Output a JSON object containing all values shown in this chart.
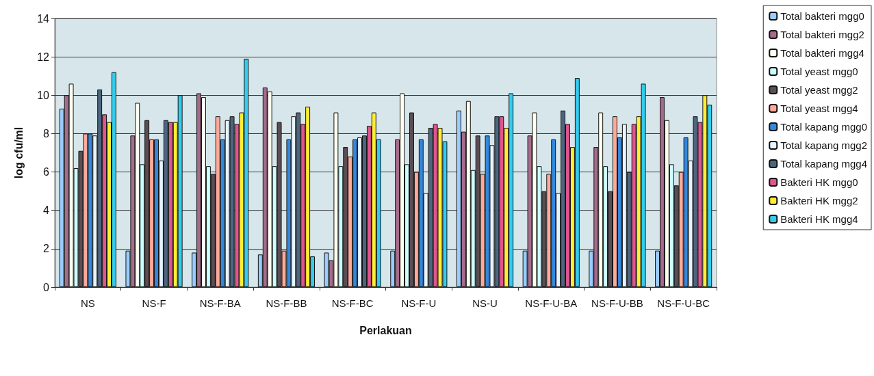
{
  "chart_data": {
    "type": "bar",
    "xlabel": "Perlakuan",
    "ylabel": "log cfu/ml",
    "categories": [
      "NS",
      "NS-F",
      "NS-F-BA",
      "NS-F-BB",
      "NS-F-BC",
      "NS-F-U",
      "NS-U",
      "NS-F-U-BA",
      "NS-F-U-BB",
      "NS-F-U-BC"
    ],
    "series": [
      {
        "name": "Total bakteri mgg0",
        "color": "#99ccff",
        "values": [
          9.3,
          1.9,
          1.8,
          1.7,
          1.8,
          1.9,
          9.2,
          1.9,
          1.9,
          1.9
        ]
      },
      {
        "name": "Total bakteri mgg2",
        "color": "#a66c8c",
        "values": [
          10.0,
          7.9,
          10.1,
          10.4,
          1.4,
          7.7,
          8.1,
          7.9,
          7.3,
          9.9
        ]
      },
      {
        "name": "Total bakteri mgg4",
        "color": "#fffff0",
        "values": [
          10.6,
          9.6,
          9.9,
          10.2,
          9.1,
          10.1,
          9.7,
          9.1,
          9.1,
          8.7
        ]
      },
      {
        "name": "Total yeast mgg0",
        "color": "#ccffff",
        "values": [
          6.2,
          6.4,
          6.3,
          6.3,
          6.3,
          6.4,
          6.1,
          6.3,
          6.3,
          6.4
        ]
      },
      {
        "name": "Total yeast mgg2",
        "color": "#5c4d55",
        "values": [
          7.1,
          8.7,
          5.9,
          8.6,
          7.3,
          9.1,
          7.9,
          5.0,
          5.0,
          5.3
        ]
      },
      {
        "name": "Total yeast mgg4",
        "color": "#ffaa99",
        "values": [
          8.0,
          7.7,
          8.9,
          1.9,
          6.8,
          6.0,
          5.9,
          5.9,
          8.9,
          6.0
        ]
      },
      {
        "name": "Total kapang mgg0",
        "color": "#3388dd",
        "values": [
          8.0,
          7.7,
          7.7,
          7.7,
          7.7,
          7.7,
          7.9,
          7.7,
          7.8,
          7.8
        ]
      },
      {
        "name": "Total kapang mgg2",
        "color": "#e8f4ff",
        "values": [
          7.9,
          6.6,
          8.7,
          8.9,
          7.8,
          4.9,
          7.4,
          4.9,
          8.5,
          6.6
        ]
      },
      {
        "name": "Total kapang mgg4",
        "color": "#4d6680",
        "values": [
          10.3,
          8.7,
          8.9,
          9.1,
          7.9,
          8.3,
          8.9,
          9.2,
          6.0,
          8.9
        ]
      },
      {
        "name": "Bakteri HK mgg0",
        "color": "#e05590",
        "values": [
          9.0,
          8.6,
          8.5,
          8.5,
          8.4,
          8.5,
          8.9,
          8.5,
          8.5,
          8.6
        ]
      },
      {
        "name": "Bakteri HK mgg2",
        "color": "#ffee33",
        "values": [
          8.6,
          8.6,
          9.1,
          9.4,
          9.1,
          8.3,
          8.3,
          7.3,
          8.9,
          10.0
        ]
      },
      {
        "name": "Bakteri HK mgg4",
        "color": "#33ccee",
        "values": [
          11.2,
          10.0,
          11.9,
          1.6,
          7.7,
          7.6,
          10.1,
          10.9,
          10.6,
          9.5
        ]
      }
    ],
    "ylim": [
      0,
      14
    ],
    "yticks": [
      0,
      2,
      4,
      6,
      8,
      10,
      12,
      14
    ],
    "grid": "y",
    "legend": "right"
  }
}
